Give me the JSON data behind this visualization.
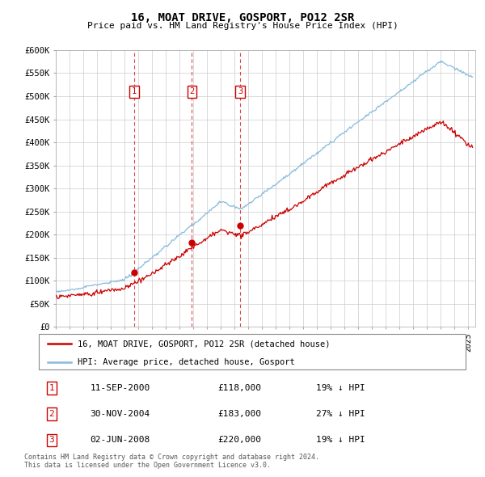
{
  "title": "16, MOAT DRIVE, GOSPORT, PO12 2SR",
  "subtitle": "Price paid vs. HM Land Registry's House Price Index (HPI)",
  "ylabel_ticks": [
    "£0",
    "£50K",
    "£100K",
    "£150K",
    "£200K",
    "£250K",
    "£300K",
    "£350K",
    "£400K",
    "£450K",
    "£500K",
    "£550K",
    "£600K"
  ],
  "ylim": [
    0,
    600000
  ],
  "xlim_start": 1995.0,
  "xlim_end": 2025.5,
  "red_line_color": "#cc0000",
  "blue_line_color": "#88bbdd",
  "grid_color": "#cccccc",
  "background_color": "#ffffff",
  "sale_markers": [
    {
      "year": 2000.7,
      "price": 118000,
      "label": "1"
    },
    {
      "year": 2004.9,
      "price": 183000,
      "label": "2"
    },
    {
      "year": 2008.4,
      "price": 220000,
      "label": "3"
    }
  ],
  "legend_entries": [
    "16, MOAT DRIVE, GOSPORT, PO12 2SR (detached house)",
    "HPI: Average price, detached house, Gosport"
  ],
  "table_rows": [
    {
      "num": "1",
      "date": "11-SEP-2000",
      "price": "£118,000",
      "hpi": "19% ↓ HPI"
    },
    {
      "num": "2",
      "date": "30-NOV-2004",
      "price": "£183,000",
      "hpi": "27% ↓ HPI"
    },
    {
      "num": "3",
      "date": "02-JUN-2008",
      "price": "£220,000",
      "hpi": "19% ↓ HPI"
    }
  ],
  "footnote": "Contains HM Land Registry data © Crown copyright and database right 2024.\nThis data is licensed under the Open Government Licence v3.0."
}
